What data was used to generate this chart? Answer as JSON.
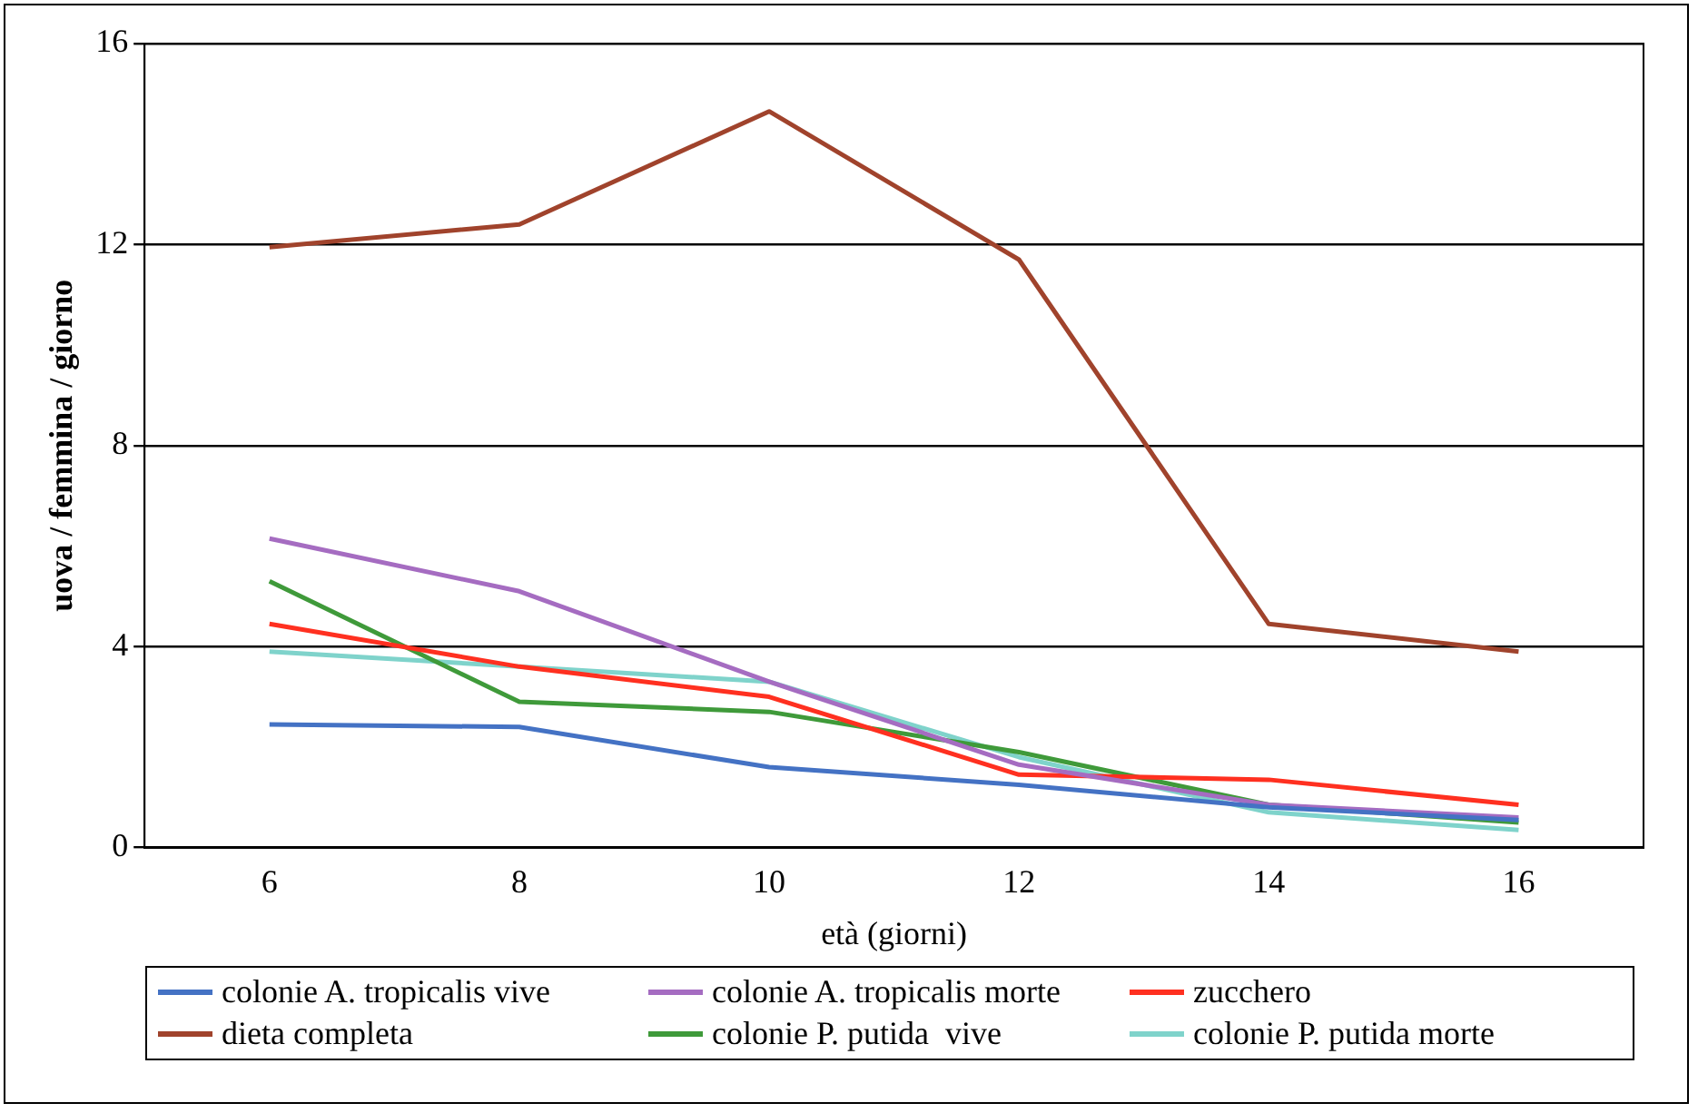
{
  "chart_data": {
    "type": "line",
    "xlabel": "età (giorni)",
    "ylabel": "uova / femmina / giorno",
    "categories": [
      "6",
      "8",
      "10",
      "12",
      "14",
      "16"
    ],
    "ylim": [
      0,
      16
    ],
    "yticks": [
      0,
      4,
      8,
      12,
      16
    ],
    "grid": "y",
    "legend": "bottom",
    "marker": "none",
    "series": [
      {
        "name": "colonie A. tropicalis vive",
        "color": "#4472c4",
        "values": [
          2.45,
          2.4,
          1.6,
          1.25,
          0.8,
          0.55
        ]
      },
      {
        "name": "colonie A. tropicalis morte",
        "color": "#a56cc1",
        "values": [
          6.15,
          5.1,
          3.3,
          1.65,
          0.85,
          0.6
        ]
      },
      {
        "name": "zucchero",
        "color": "#ff3020",
        "values": [
          4.45,
          3.6,
          3.0,
          1.45,
          1.35,
          0.85
        ]
      },
      {
        "name": "dieta completa",
        "color": "#a0432c",
        "values": [
          11.95,
          12.4,
          14.65,
          11.7,
          4.45,
          3.9
        ]
      },
      {
        "name": "colonie P. putida  vive",
        "color": "#3f9a3a",
        "values": [
          5.3,
          2.9,
          2.7,
          1.9,
          0.85,
          0.5
        ]
      },
      {
        "name": "colonie P. putida morte",
        "color": "#7fd3cb",
        "values": [
          3.9,
          3.6,
          3.3,
          1.8,
          0.7,
          0.35
        ]
      }
    ]
  }
}
